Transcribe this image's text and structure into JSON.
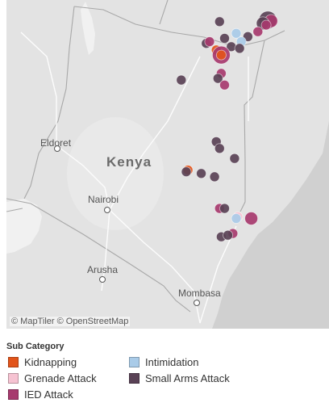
{
  "map": {
    "country_label": "Kenya",
    "cities": [
      {
        "name": "Eldoret"
      },
      {
        "name": "Nairobi"
      },
      {
        "name": "Arusha"
      },
      {
        "name": "Mombasa"
      }
    ],
    "attribution": "© MapTiler © OpenStreetMap",
    "incidents": [
      {
        "category": "Small Arms Attack",
        "lat": 3.95,
        "lon": 41.85,
        "size": 4
      },
      {
        "category": "IED Attack",
        "lat": 3.92,
        "lon": 41.95,
        "size": 3
      },
      {
        "category": "Small Arms Attack",
        "lat": 3.85,
        "lon": 41.7,
        "size": 3
      },
      {
        "category": "IED Attack",
        "lat": 3.8,
        "lon": 41.8,
        "size": 2
      },
      {
        "category": "Small Arms Attack",
        "lat": 3.9,
        "lon": 40.4,
        "size": 2
      },
      {
        "category": "Intimidation",
        "lat": 3.55,
        "lon": 40.9,
        "size": 2
      },
      {
        "category": "IED Attack",
        "lat": 3.6,
        "lon": 41.55,
        "size": 2
      },
      {
        "category": "Small Arms Attack",
        "lat": 3.45,
        "lon": 41.25,
        "size": 2
      },
      {
        "category": "Intimidation",
        "lat": 3.3,
        "lon": 41.05,
        "size": 2
      },
      {
        "category": "Small Arms Attack",
        "lat": 3.25,
        "lon": 40.0,
        "size": 2
      },
      {
        "category": "IED Attack",
        "lat": 3.3,
        "lon": 40.1,
        "size": 2
      },
      {
        "category": "Small Arms Attack",
        "lat": 3.4,
        "lon": 40.55,
        "size": 2
      },
      {
        "category": "Kidnapping",
        "lat": 3.05,
        "lon": 40.3,
        "size": 2
      },
      {
        "category": "Small Arms Attack",
        "lat": 3.15,
        "lon": 40.75,
        "size": 2
      },
      {
        "category": "Small Arms Attack",
        "lat": 3.1,
        "lon": 41.0,
        "size": 2
      },
      {
        "category": "IED Attack",
        "lat": 2.9,
        "lon": 40.45,
        "size": 4
      },
      {
        "category": "Kidnapping",
        "lat": 2.9,
        "lon": 40.45,
        "size": 2
      },
      {
        "category": "IED Attack",
        "lat": 2.35,
        "lon": 40.45,
        "size": 2
      },
      {
        "category": "Small Arms Attack",
        "lat": 2.2,
        "lon": 40.35,
        "size": 2
      },
      {
        "category": "IED Attack",
        "lat": 2.0,
        "lon": 40.55,
        "size": 2
      },
      {
        "category": "Small Arms Attack",
        "lat": 2.15,
        "lon": 39.25,
        "size": 2
      },
      {
        "category": "Small Arms Attack",
        "lat": 0.3,
        "lon": 40.3,
        "size": 2
      },
      {
        "category": "Small Arms Attack",
        "lat": 0.1,
        "lon": 40.4,
        "size": 2
      },
      {
        "category": "Small Arms Attack",
        "lat": -0.2,
        "lon": 40.85,
        "size": 2
      },
      {
        "category": "Kidnapping",
        "lat": -0.55,
        "lon": 39.45,
        "size": 2
      },
      {
        "category": "Small Arms Attack",
        "lat": -0.6,
        "lon": 39.4,
        "size": 2
      },
      {
        "category": "Small Arms Attack",
        "lat": -0.65,
        "lon": 39.85,
        "size": 2
      },
      {
        "category": "Small Arms Attack",
        "lat": -0.75,
        "lon": 40.25,
        "size": 2
      },
      {
        "category": "IED Attack",
        "lat": -1.7,
        "lon": 40.4,
        "size": 2
      },
      {
        "category": "Small Arms Attack",
        "lat": -1.7,
        "lon": 40.55,
        "size": 2
      },
      {
        "category": "Grenade Attack",
        "lat": -1.95,
        "lon": 40.95,
        "size": 2
      },
      {
        "category": "Intimidation",
        "lat": -2.0,
        "lon": 40.9,
        "size": 2
      },
      {
        "category": "IED Attack",
        "lat": -2.0,
        "lon": 41.35,
        "size": 3
      },
      {
        "category": "Small Arms Attack",
        "lat": -2.55,
        "lon": 40.45,
        "size": 2
      },
      {
        "category": "IED Attack",
        "lat": -2.45,
        "lon": 40.8,
        "size": 2
      },
      {
        "category": "Small Arms Attack",
        "lat": -2.5,
        "lon": 40.65,
        "size": 2
      }
    ]
  },
  "legend": {
    "title": "Sub Category",
    "items": [
      {
        "label": "Kidnapping",
        "color": "#e2541a"
      },
      {
        "label": "Grenade Attack",
        "color": "#f6c3d2"
      },
      {
        "label": "IED Attack",
        "color": "#a73a6e"
      },
      {
        "label": "Intimidation",
        "color": "#a9cbe8"
      },
      {
        "label": "Small Arms Attack",
        "color": "#5a4256"
      }
    ]
  }
}
